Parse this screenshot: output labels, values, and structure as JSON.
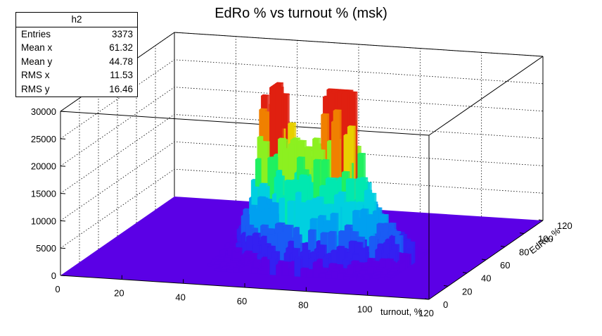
{
  "chart_data": {
    "type": "lego2d-surface",
    "title": "EdRo % vs turnout % (msk)",
    "xlabel": "turnout, %",
    "ylabel": "EdRo, %",
    "zlabel": "",
    "xlim": [
      0,
      120
    ],
    "ylim": [
      0,
      120
    ],
    "zlim": [
      0,
      30000
    ],
    "x_ticks": [
      "0",
      "20",
      "40",
      "60",
      "80",
      "100",
      "120"
    ],
    "y_ticks": [
      "0",
      "20",
      "40",
      "60",
      "80",
      "100",
      "120"
    ],
    "z_ticks": [
      "0",
      "5000",
      "10000",
      "15000",
      "20000",
      "25000",
      "30000"
    ],
    "grid": true,
    "palette": [
      "#5b00e6",
      "#3420f2",
      "#1a5cf5",
      "#00a0f0",
      "#00d0e0",
      "#00e8b0",
      "#20f060",
      "#8cf020",
      "#e8d000",
      "#f08000",
      "#e02010"
    ],
    "floor_color": "#5b00e6",
    "peaks": [
      {
        "x": 52,
        "y": 56,
        "z": 28000
      },
      {
        "x": 75,
        "y": 54,
        "z": 28500
      },
      {
        "x": 62,
        "y": 50,
        "z": 12000
      },
      {
        "x": 86,
        "y": 45,
        "z": 9500
      },
      {
        "x": 70,
        "y": 35,
        "z": 6000
      }
    ],
    "stats": {
      "name": "h2",
      "rows": [
        {
          "label": "Entries",
          "value": "3373"
        },
        {
          "label": "Mean x",
          "value": "61.32"
        },
        {
          "label": "Mean y",
          "value": "44.78"
        },
        {
          "label": "RMS x",
          "value": "11.53"
        },
        {
          "label": "RMS y",
          "value": "16.46"
        }
      ]
    }
  }
}
